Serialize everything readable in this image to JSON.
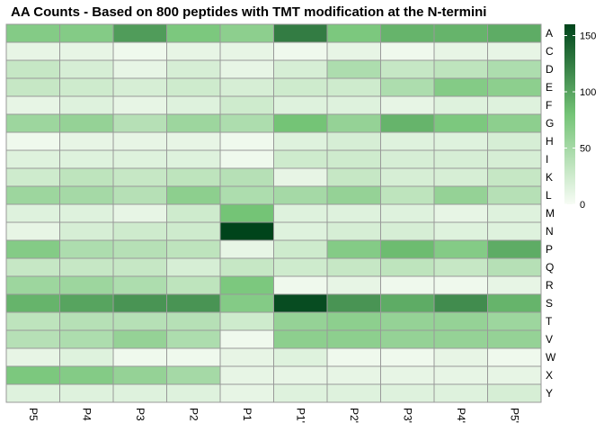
{
  "chart_data": {
    "type": "heatmap",
    "title": "AA Counts - Based on 800 peptides with TMT modification at the N-termini",
    "rows": [
      "A",
      "C",
      "D",
      "E",
      "F",
      "G",
      "H",
      "I",
      "K",
      "L",
      "M",
      "N",
      "P",
      "Q",
      "R",
      "S",
      "T",
      "V",
      "W",
      "X",
      "Y"
    ],
    "columns": [
      "P5",
      "P4",
      "P3",
      "P2",
      "P1",
      "P1'",
      "P2'",
      "P3'",
      "P4'",
      "P5'"
    ],
    "values": [
      [
        70,
        70,
        105,
        75,
        65,
        125,
        75,
        90,
        90,
        95
      ],
      [
        10,
        10,
        5,
        10,
        10,
        5,
        10,
        5,
        10,
        10
      ],
      [
        30,
        20,
        10,
        20,
        10,
        20,
        45,
        30,
        35,
        45
      ],
      [
        30,
        25,
        20,
        25,
        20,
        25,
        25,
        45,
        70,
        65
      ],
      [
        10,
        15,
        10,
        15,
        25,
        15,
        15,
        10,
        15,
        15
      ],
      [
        55,
        60,
        40,
        55,
        45,
        80,
        60,
        90,
        75,
        65
      ],
      [
        5,
        10,
        10,
        10,
        5,
        15,
        20,
        15,
        15,
        20
      ],
      [
        15,
        15,
        15,
        15,
        5,
        25,
        25,
        20,
        20,
        20
      ],
      [
        25,
        35,
        30,
        35,
        40,
        10,
        30,
        20,
        20,
        30
      ],
      [
        55,
        50,
        40,
        65,
        45,
        50,
        60,
        35,
        60,
        40
      ],
      [
        15,
        15,
        10,
        25,
        80,
        15,
        15,
        15,
        10,
        15
      ],
      [
        10,
        20,
        25,
        25,
        160,
        15,
        20,
        20,
        15,
        15
      ],
      [
        70,
        45,
        40,
        35,
        10,
        25,
        70,
        85,
        70,
        95
      ],
      [
        30,
        30,
        30,
        20,
        30,
        25,
        30,
        35,
        30,
        40
      ],
      [
        55,
        55,
        45,
        35,
        75,
        5,
        10,
        5,
        5,
        10
      ],
      [
        90,
        100,
        110,
        110,
        70,
        155,
        110,
        95,
        115,
        90
      ],
      [
        35,
        40,
        40,
        40,
        25,
        60,
        65,
        60,
        60,
        55
      ],
      [
        40,
        45,
        60,
        45,
        5,
        65,
        65,
        60,
        60,
        60
      ],
      [
        10,
        15,
        5,
        5,
        10,
        15,
        5,
        5,
        10,
        5
      ],
      [
        75,
        70,
        60,
        50,
        10,
        10,
        10,
        10,
        10,
        10
      ],
      [
        15,
        15,
        15,
        15,
        10,
        15,
        15,
        15,
        15,
        20
      ]
    ],
    "zlim": [
      0,
      160
    ],
    "legend": {
      "ticks": [
        0,
        50,
        100,
        150
      ],
      "position": "right"
    },
    "colors": {
      "low": "#f7fcf5",
      "mid": "#74c476",
      "high": "#00441b",
      "cell_border": "#999999"
    }
  }
}
